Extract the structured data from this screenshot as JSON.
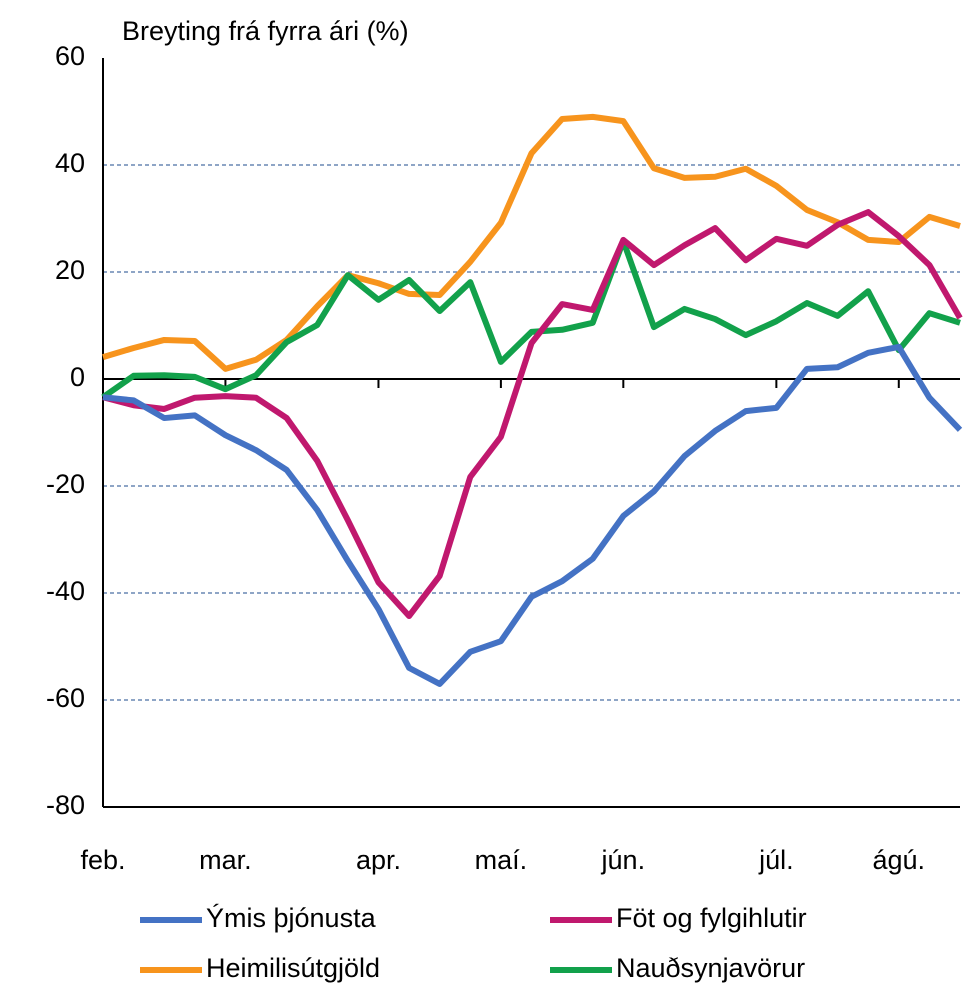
{
  "chart_data": {
    "type": "line",
    "title": "Breyting frá fyrra ári (%)",
    "categories": [
      "feb.",
      null,
      null,
      null,
      "mar.",
      null,
      null,
      null,
      null,
      "apr.",
      null,
      null,
      null,
      "maí.",
      null,
      null,
      null,
      "jún.",
      null,
      null,
      null,
      null,
      "júl.",
      null,
      null,
      null,
      "ágú.",
      null,
      null
    ],
    "series": [
      {
        "name": "Ýmis þjónusta",
        "color": "#4472c4",
        "values": [
          -3.4,
          -4,
          -7.3,
          -6.8,
          -10.5,
          -13.3,
          -17,
          -24.5,
          -34,
          -43,
          -54,
          -57,
          -51,
          -49,
          -40.7,
          -37.8,
          -33.6,
          -25.6,
          -21,
          -14.4,
          -9.7,
          -6,
          -5.4,
          1.9,
          2.2,
          4.9,
          6,
          -3.5,
          -9.5
        ]
      },
      {
        "name": "Föt og fylgihlutir",
        "color": "#c0186e",
        "values": [
          -3.4,
          -4.9,
          -5.6,
          -3.5,
          -3.2,
          -3.5,
          -7.3,
          -15.3,
          -26.4,
          -38,
          -44.3,
          -36.8,
          -18.3,
          -10.8,
          6.7,
          14,
          12.9,
          26,
          21.3,
          25,
          28.2,
          22.2,
          26.2,
          24.9,
          28.8,
          31.2,
          26.7,
          21.3,
          11.4
        ]
      },
      {
        "name": "Heimilisútgjöld",
        "color": "#f7941d",
        "values": [
          4.1,
          5.8,
          7.3,
          7.1,
          1.9,
          3.6,
          7.3,
          13.6,
          19.4,
          17.9,
          15.9,
          15.7,
          21.9,
          29.2,
          42.2,
          48.6,
          49,
          48.2,
          39.4,
          37.6,
          37.8,
          39.3,
          36.1,
          31.6,
          29.3,
          26,
          25.6,
          30.3,
          28.6
        ]
      },
      {
        "name": "Nauðsynjavörur",
        "color": "#12a14b",
        "values": [
          -3.4,
          0.6,
          0.7,
          0.4,
          -1.9,
          0.7,
          6.9,
          10.1,
          19.4,
          14.8,
          18.5,
          12.7,
          18.1,
          3.2,
          8.8,
          9.2,
          10.5,
          25.8,
          9.7,
          13.1,
          11.2,
          8.2,
          10.8,
          14.2,
          11.8,
          16.4,
          5.4,
          12.3,
          10.5
        ]
      }
    ],
    "ylim": [
      -80,
      60
    ],
    "yticks": [
      -80,
      -60,
      -40,
      -20,
      0,
      20,
      40,
      60
    ],
    "grid": true
  }
}
